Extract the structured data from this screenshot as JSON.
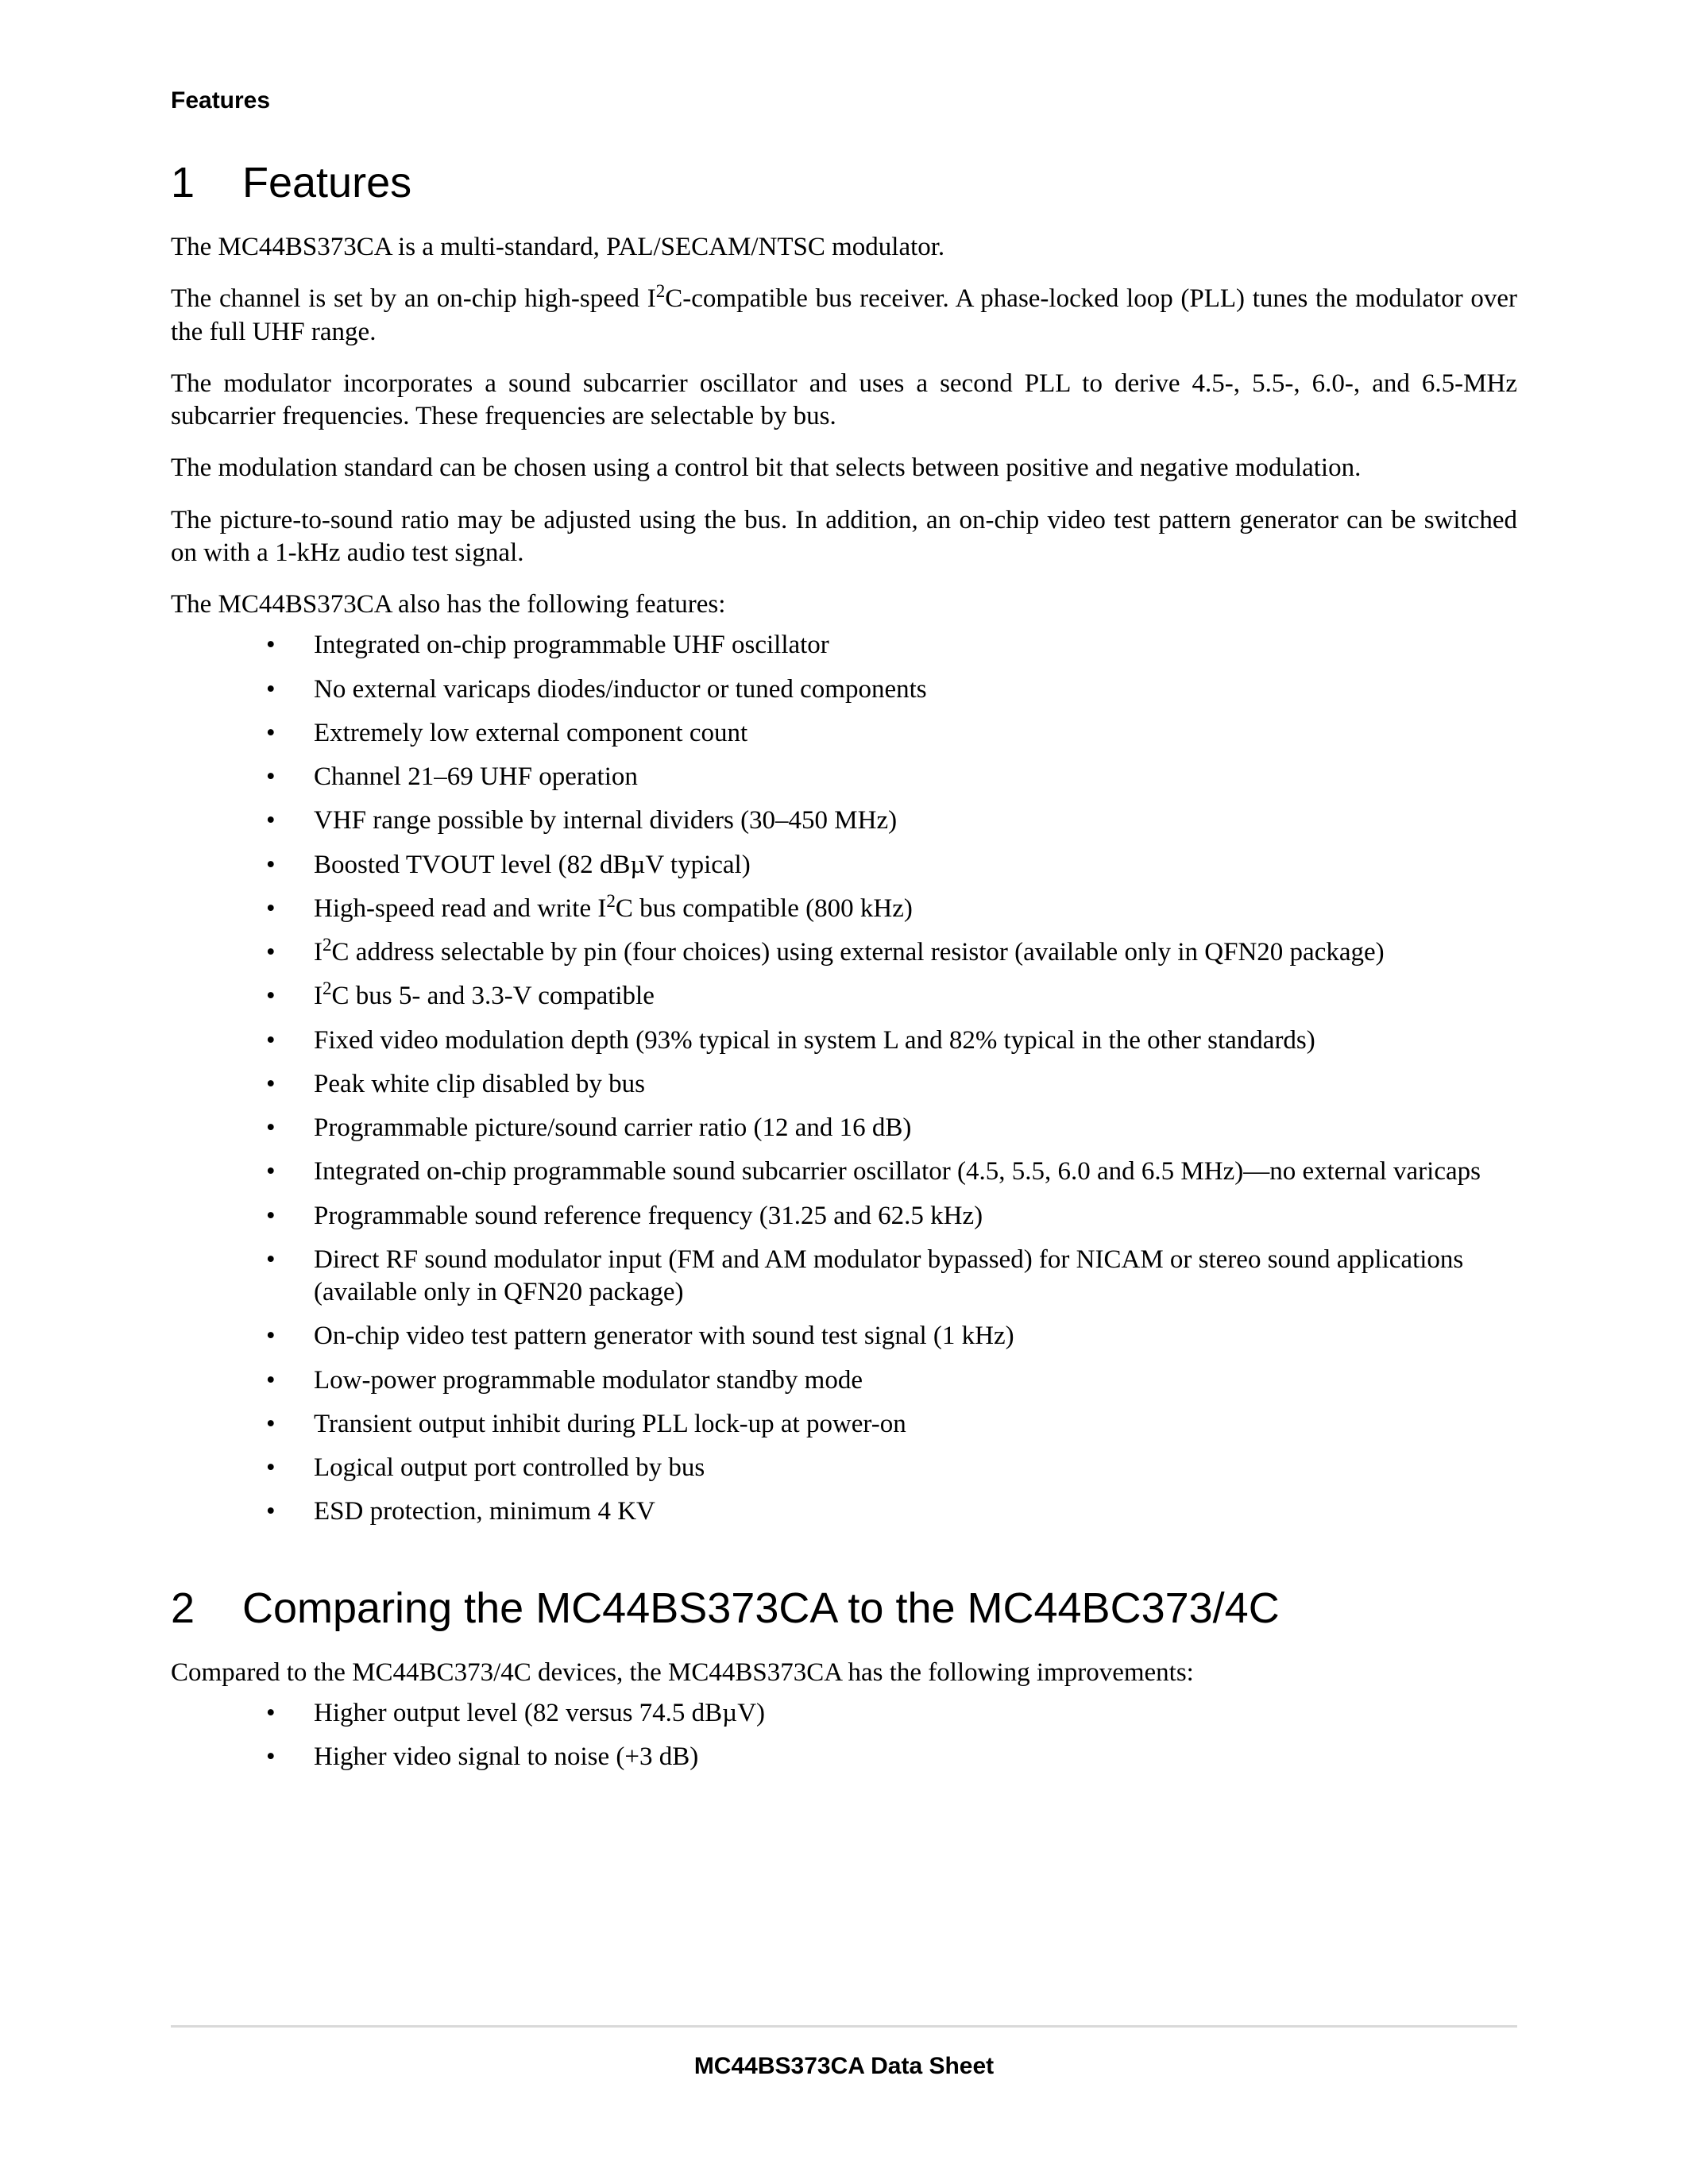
{
  "colors": {
    "text": "#000000",
    "background": "#ffffff",
    "rule": "#d9d9d9"
  },
  "typography": {
    "body_family": "Times New Roman",
    "heading_family": "Arial",
    "body_size_pt": 16,
    "h1_size_pt": 27,
    "header_size_pt": 15,
    "footer_size_pt": 15
  },
  "header": {
    "label": "Features"
  },
  "section1": {
    "number": "1",
    "title": "Features",
    "paragraphs": [
      "The MC44BS373CA is a multi-standard, PAL/SECAM/NTSC modulator.",
      "The channel is set by an on-chip high-speed I²C-compatible bus receiver. A phase-locked loop (PLL) tunes the modulator over the full UHF range.",
      "The modulator incorporates a sound subcarrier oscillator and uses a second PLL to derive 4.5-, 5.5-, 6.0-, and 6.5-MHz subcarrier frequencies. These frequencies are selectable by bus.",
      "The modulation standard can be chosen using a control bit that selects between positive and negative modulation.",
      "The picture-to-sound ratio may be adjusted using the bus. In addition, an on-chip video test pattern generator can be switched on with a 1-kHz audio test signal.",
      "The MC44BS373CA also has the following features:"
    ],
    "bullets": [
      "Integrated on-chip programmable UHF oscillator",
      "No external varicaps diodes/inductor or tuned components",
      "Extremely low external component count",
      "Channel 21–69 UHF operation",
      "VHF range possible by internal dividers (30–450 MHz)",
      "Boosted TVOUT level (82 dBµV typical)",
      "High-speed read and write I²C bus compatible (800 kHz)",
      "I²C address selectable by pin (four choices) using external resistor (available only in QFN20 package)",
      "I²C bus 5- and 3.3-V compatible",
      "Fixed video modulation depth (93% typical in system L and 82% typical in the other standards)",
      "Peak white clip disabled by bus",
      "Programmable picture/sound carrier ratio (12 and 16 dB)",
      "Integrated on-chip programmable sound subcarrier oscillator (4.5, 5.5, 6.0 and 6.5 MHz)—no external varicaps",
      "Programmable sound reference frequency (31.25 and 62.5 kHz)",
      "Direct RF sound modulator input (FM and AM modulator bypassed) for NICAM or stereo sound applications (available only in QFN20 package)",
      "On-chip video test pattern generator with sound test signal (1 kHz)",
      "Low-power programmable modulator standby mode",
      "Transient output inhibit during PLL lock-up at power-on",
      "Logical output port controlled by bus",
      "ESD protection, minimum 4 KV"
    ]
  },
  "section2": {
    "number": "2",
    "title": "Comparing the MC44BS373CA to the MC44BC373/4C",
    "paragraphs": [
      "Compared to the MC44BC373/4C devices, the MC44BS373CA has the following improvements:"
    ],
    "bullets": [
      "Higher output level (82 versus 74.5 dBµV)",
      "Higher video signal to noise (+3 dB)"
    ]
  },
  "footer": {
    "text": "MC44BS373CA Data Sheet"
  }
}
